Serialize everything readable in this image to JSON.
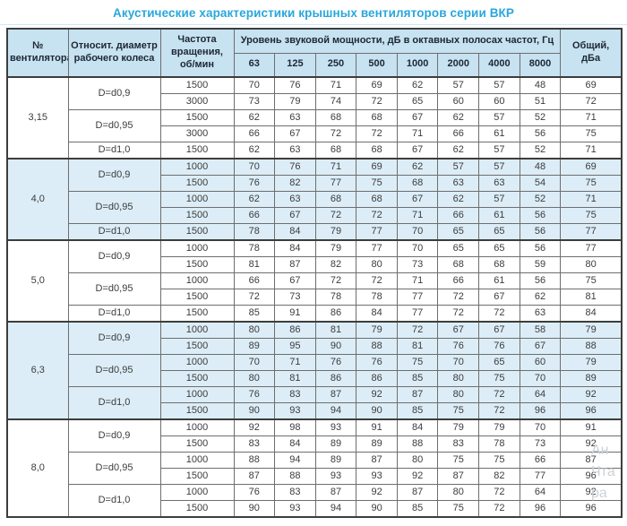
{
  "title": "Акустические характеристики крышных вентиляторов серии ВКР",
  "colors": {
    "title_accent": "#29a7da",
    "header_bg": "#c7e2f1",
    "group_shaded_bg": "#dcedf7",
    "border_dark": "#3d3d3d",
    "border_inner": "#6e6e6e"
  },
  "table": {
    "headers": {
      "fan_number": "№ вентилятора",
      "rel_diameter": "Относит. диаметр рабочего колеса",
      "rotation_freq": "Частота вращения, об/мин",
      "sound_power": "Уровень звуковой мощности, дБ в октавных полосах частот, Гц",
      "frequencies": [
        "63",
        "125",
        "250",
        "500",
        "1000",
        "2000",
        "4000",
        "8000"
      ],
      "total": "Общий, дБа"
    },
    "groups": [
      {
        "fan": "3,15",
        "shaded": false,
        "subgroups": [
          {
            "diameter": "D=d0,9",
            "rows": [
              {
                "rpm": "1500",
                "values": [
                  70,
                  76,
                  71,
                  69,
                  62,
                  57,
                  57,
                  48
                ],
                "total": 69
              },
              {
                "rpm": "3000",
                "values": [
                  73,
                  79,
                  74,
                  72,
                  65,
                  60,
                  60,
                  51
                ],
                "total": 72
              }
            ]
          },
          {
            "diameter": "D=d0,95",
            "rows": [
              {
                "rpm": "1500",
                "values": [
                  62,
                  63,
                  68,
                  68,
                  67,
                  62,
                  57,
                  52
                ],
                "total": 71
              },
              {
                "rpm": "3000",
                "values": [
                  66,
                  67,
                  72,
                  72,
                  71,
                  66,
                  61,
                  56
                ],
                "total": 75
              }
            ]
          },
          {
            "diameter": "D=d1,0",
            "rows": [
              {
                "rpm": "1500",
                "values": [
                  62,
                  63,
                  68,
                  68,
                  67,
                  62,
                  57,
                  52
                ],
                "total": 71
              }
            ]
          }
        ]
      },
      {
        "fan": "4,0",
        "shaded": true,
        "subgroups": [
          {
            "diameter": "D=d0,9",
            "rows": [
              {
                "rpm": "1000",
                "values": [
                  70,
                  76,
                  71,
                  69,
                  62,
                  57,
                  57,
                  48
                ],
                "total": 69
              },
              {
                "rpm": "1500",
                "values": [
                  76,
                  82,
                  77,
                  75,
                  68,
                  63,
                  63,
                  54
                ],
                "total": 75
              }
            ]
          },
          {
            "diameter": "D=d0,95",
            "rows": [
              {
                "rpm": "1000",
                "values": [
                  62,
                  63,
                  68,
                  68,
                  67,
                  62,
                  57,
                  52
                ],
                "total": 71
              },
              {
                "rpm": "1500",
                "values": [
                  66,
                  67,
                  72,
                  72,
                  71,
                  66,
                  61,
                  56
                ],
                "total": 75
              }
            ]
          },
          {
            "diameter": "D=d1,0",
            "rows": [
              {
                "rpm": "1500",
                "values": [
                  78,
                  84,
                  79,
                  77,
                  70,
                  65,
                  65,
                  56
                ],
                "total": 77
              }
            ]
          }
        ]
      },
      {
        "fan": "5,0",
        "shaded": false,
        "subgroups": [
          {
            "diameter": "D=d0,9",
            "rows": [
              {
                "rpm": "1000",
                "values": [
                  78,
                  84,
                  79,
                  77,
                  70,
                  65,
                  65,
                  56
                ],
                "total": 77
              },
              {
                "rpm": "1500",
                "values": [
                  81,
                  87,
                  82,
                  80,
                  73,
                  68,
                  68,
                  59
                ],
                "total": 80
              }
            ]
          },
          {
            "diameter": "D=d0,95",
            "rows": [
              {
                "rpm": "1000",
                "values": [
                  66,
                  67,
                  72,
                  72,
                  71,
                  66,
                  61,
                  56
                ],
                "total": 75
              },
              {
                "rpm": "1500",
                "values": [
                  72,
                  73,
                  78,
                  78,
                  77,
                  72,
                  67,
                  62
                ],
                "total": 81
              }
            ]
          },
          {
            "diameter": "D=d1,0",
            "rows": [
              {
                "rpm": "1500",
                "values": [
                  85,
                  91,
                  86,
                  84,
                  77,
                  72,
                  72,
                  63
                ],
                "total": 84
              }
            ]
          }
        ]
      },
      {
        "fan": "6,3",
        "shaded": true,
        "subgroups": [
          {
            "diameter": "D=d0,9",
            "rows": [
              {
                "rpm": "1000",
                "values": [
                  80,
                  86,
                  81,
                  79,
                  72,
                  67,
                  67,
                  58
                ],
                "total": 79
              },
              {
                "rpm": "1500",
                "values": [
                  89,
                  95,
                  90,
                  88,
                  81,
                  76,
                  76,
                  67
                ],
                "total": 88
              }
            ]
          },
          {
            "diameter": "D=d0,95",
            "rows": [
              {
                "rpm": "1000",
                "values": [
                  70,
                  71,
                  76,
                  76,
                  75,
                  70,
                  65,
                  60
                ],
                "total": 79
              },
              {
                "rpm": "1500",
                "values": [
                  80,
                  81,
                  86,
                  86,
                  85,
                  80,
                  75,
                  70
                ],
                "total": 89
              }
            ]
          },
          {
            "diameter": "D=d1,0",
            "rows": [
              {
                "rpm": "1000",
                "values": [
                  76,
                  83,
                  87,
                  92,
                  87,
                  80,
                  72,
                  64
                ],
                "total": 92
              },
              {
                "rpm": "1500",
                "values": [
                  90,
                  93,
                  94,
                  90,
                  85,
                  75,
                  72,
                  96
                ],
                "total": 96
              }
            ]
          }
        ]
      },
      {
        "fan": "8,0",
        "shaded": false,
        "subgroups": [
          {
            "diameter": "D=d0,9",
            "rows": [
              {
                "rpm": "1000",
                "values": [
                  92,
                  98,
                  93,
                  91,
                  84,
                  79,
                  79,
                  70
                ],
                "total": 91
              },
              {
                "rpm": "1500",
                "values": [
                  83,
                  84,
                  89,
                  89,
                  88,
                  83,
                  78,
                  73
                ],
                "total": 92
              }
            ]
          },
          {
            "diameter": "D=d0,95",
            "rows": [
              {
                "rpm": "1000",
                "values": [
                  88,
                  94,
                  89,
                  87,
                  80,
                  75,
                  75,
                  66
                ],
                "total": 87
              },
              {
                "rpm": "1500",
                "values": [
                  87,
                  88,
                  93,
                  93,
                  92,
                  87,
                  82,
                  77
                ],
                "total": 96
              }
            ]
          },
          {
            "diameter": "D=d1,0",
            "rows": [
              {
                "rpm": "1000",
                "values": [
                  76,
                  83,
                  87,
                  92,
                  87,
                  80,
                  72,
                  64
                ],
                "total": 92
              },
              {
                "rpm": "1500",
                "values": [
                  90,
                  93,
                  94,
                  90,
                  85,
                  75,
                  72,
                  96
                ],
                "total": 96
              }
            ]
          }
        ]
      }
    ]
  },
  "watermark": {
    "lines": [
      "Ан",
      "Чта",
      "ра"
    ]
  }
}
